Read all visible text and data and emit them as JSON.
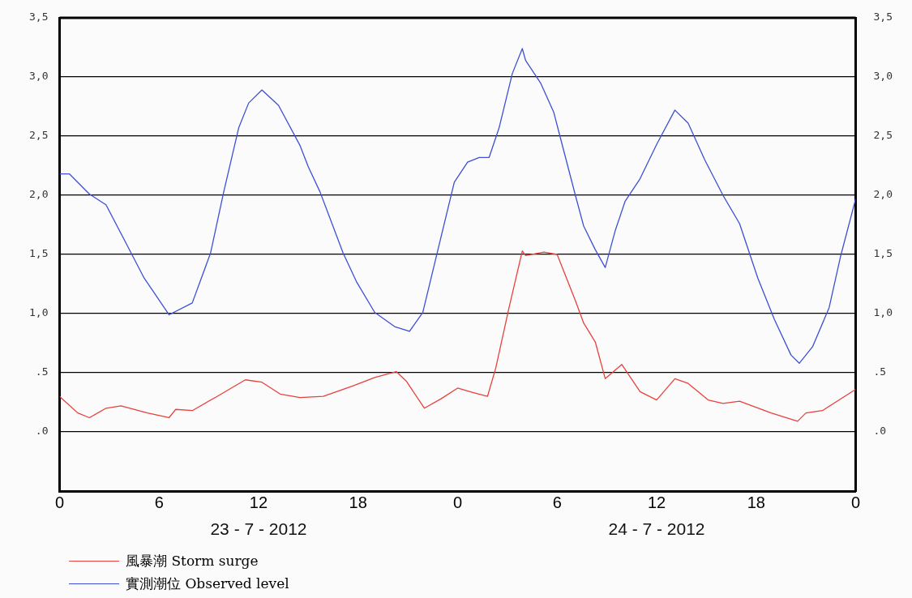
{
  "chart_data": {
    "type": "line",
    "x": [
      "2012-07-23T00:00",
      "2012-07-23T00:36",
      "2012-07-23T01:48",
      "2012-07-23T02:48",
      "2012-07-23T04:06",
      "2012-07-23T05:06",
      "2012-07-23T06:36",
      "2012-07-23T08:00",
      "2012-07-23T09:06",
      "2012-07-23T09:54",
      "2012-07-23T10:48",
      "2012-07-23T11:24",
      "2012-07-23T12:12",
      "2012-07-23T13:12",
      "2012-07-23T14:30",
      "2012-07-23T15:00",
      "2012-07-23T15:42",
      "2012-07-23T17:06",
      "2012-07-23T17:54",
      "2012-07-23T19:00",
      "2012-07-23T20:12",
      "2012-07-23T21:06",
      "2012-07-23T21:54",
      "2012-07-23T22:54",
      "2012-07-23T23:48",
      "2012-07-24T00:36",
      "2012-07-24T01:18",
      "2012-07-24T01:54",
      "2012-07-24T02:30",
      "2012-07-24T03:18",
      "2012-07-24T03:54",
      "2012-07-24T04:06",
      "2012-07-24T05:00",
      "2012-07-24T05:48",
      "2012-07-24T06:18",
      "2012-07-24T07:06",
      "2012-07-24T07:36",
      "2012-07-24T08:18",
      "2012-07-24T08:54",
      "2012-07-24T09:30",
      "2012-07-24T10:06",
      "2012-07-24T11:00",
      "2012-07-24T12:00",
      "2012-07-24T13:06",
      "2012-07-24T13:54",
      "2012-07-24T14:54",
      "2012-07-24T16:00",
      "2012-07-24T17:00",
      "2012-07-24T18:06",
      "2012-07-24T19:06",
      "2012-07-24T20:06",
      "2012-07-24T20:36",
      "2012-07-24T21:24",
      "2012-07-24T22:24",
      "2012-07-24T23:06",
      "2012-07-25T00:00"
    ],
    "series": [
      {
        "name": "風暴潮 Storm surge",
        "color": "#e8413c",
        "x": [
          "2012-07-23T00:00",
          "2012-07-23T01:06",
          "2012-07-23T01:48",
          "2012-07-23T02:48",
          "2012-07-23T03:42",
          "2012-07-23T05:18",
          "2012-07-23T06:36",
          "2012-07-23T07:00",
          "2012-07-23T08:00",
          "2012-07-23T09:30",
          "2012-07-23T11:12",
          "2012-07-23T12:12",
          "2012-07-23T13:18",
          "2012-07-23T14:30",
          "2012-07-23T15:54",
          "2012-07-23T17:42",
          "2012-07-23T19:00",
          "2012-07-23T20:18",
          "2012-07-23T20:54",
          "2012-07-23T22:00",
          "2012-07-23T23:00",
          "2012-07-24T00:00",
          "2012-07-24T01:00",
          "2012-07-24T01:48",
          "2012-07-24T02:18",
          "2012-07-24T03:06",
          "2012-07-24T03:54",
          "2012-07-24T04:06",
          "2012-07-24T05:12",
          "2012-07-24T06:00",
          "2012-07-24T07:06",
          "2012-07-24T07:36",
          "2012-07-24T08:18",
          "2012-07-24T08:54",
          "2012-07-24T09:54",
          "2012-07-24T11:00",
          "2012-07-24T12:00",
          "2012-07-24T13:06",
          "2012-07-24T13:54",
          "2012-07-24T15:06",
          "2012-07-24T16:00",
          "2012-07-24T17:00",
          "2012-07-24T18:54",
          "2012-07-24T20:30",
          "2012-07-24T21:00",
          "2012-07-24T22:00",
          "2012-07-25T00:00"
        ],
        "values": [
          0.3,
          0.16,
          0.12,
          0.2,
          0.22,
          0.16,
          0.12,
          0.19,
          0.18,
          0.3,
          0.44,
          0.42,
          0.32,
          0.29,
          0.3,
          0.39,
          0.46,
          0.51,
          0.43,
          0.2,
          0.28,
          0.37,
          0.33,
          0.3,
          0.54,
          1.05,
          1.53,
          1.49,
          1.52,
          1.5,
          1.11,
          0.92,
          0.76,
          0.45,
          0.57,
          0.34,
          0.27,
          0.45,
          0.41,
          0.27,
          0.24,
          0.26,
          0.16,
          0.09,
          0.16,
          0.18,
          0.36
        ]
      },
      {
        "name": "實測潮位 Observed level",
        "color": "#3d4fd6",
        "values": [
          2.18,
          2.18,
          2.01,
          1.92,
          1.57,
          1.3,
          0.99,
          1.09,
          1.51,
          2.03,
          2.57,
          2.78,
          2.89,
          2.76,
          2.42,
          2.24,
          2.03,
          1.51,
          1.27,
          1.01,
          0.89,
          0.85,
          1.01,
          1.59,
          2.11,
          2.28,
          2.32,
          2.32,
          2.57,
          3.03,
          3.24,
          3.14,
          2.95,
          2.7,
          2.43,
          2.0,
          1.74,
          1.54,
          1.39,
          1.7,
          1.95,
          2.14,
          2.43,
          2.72,
          2.61,
          2.3,
          2.0,
          1.76,
          1.3,
          0.95,
          0.65,
          0.58,
          0.72,
          1.05,
          1.49,
          1.97
        ]
      }
    ],
    "xlim": [
      "2012-07-23T00:00",
      "2012-07-25T00:00"
    ],
    "xticks": [
      {
        "value": "2012-07-23T00:00",
        "label": "0"
      },
      {
        "value": "2012-07-23T06:00",
        "label": "6"
      },
      {
        "value": "2012-07-23T12:00",
        "label": "12"
      },
      {
        "value": "2012-07-23T18:00",
        "label": "18"
      },
      {
        "value": "2012-07-24T00:00",
        "label": "0"
      },
      {
        "value": "2012-07-24T06:00",
        "label": "6"
      },
      {
        "value": "2012-07-24T12:00",
        "label": "12"
      },
      {
        "value": "2012-07-24T18:00",
        "label": "18"
      },
      {
        "value": "2012-07-25T00:00",
        "label": "0"
      }
    ],
    "ylim": [
      -0.5,
      3.5
    ],
    "yticks": [
      {
        "value": 0,
        "label": ".0"
      },
      {
        "value": 0.5,
        "label": ".5"
      },
      {
        "value": 1,
        "label": "1,0"
      },
      {
        "value": 1.5,
        "label": "1,5"
      },
      {
        "value": 2,
        "label": "2,0"
      },
      {
        "value": 2.5,
        "label": "2,5"
      },
      {
        "value": 3,
        "label": "3,0"
      },
      {
        "value": 3.5,
        "label": "3,5"
      }
    ],
    "y2lim": [
      -0.5,
      3.5
    ],
    "y2ticks": [
      {
        "value": 0,
        "label": ".0"
      },
      {
        "value": 0.5,
        "label": ".5"
      },
      {
        "value": 1,
        "label": "1,0"
      },
      {
        "value": 1.5,
        "label": "1,5"
      },
      {
        "value": 2,
        "label": "2,0"
      },
      {
        "value": 2.5,
        "label": "2,5"
      },
      {
        "value": 3,
        "label": "3,0"
      },
      {
        "value": 3.5,
        "label": "3,5"
      }
    ],
    "annotations": [
      "23 - 7 - 2012",
      "24 - 7 - 2012"
    ],
    "grid": "y",
    "legend": "bottom left",
    "marker": "none",
    "line_style": "solid"
  }
}
